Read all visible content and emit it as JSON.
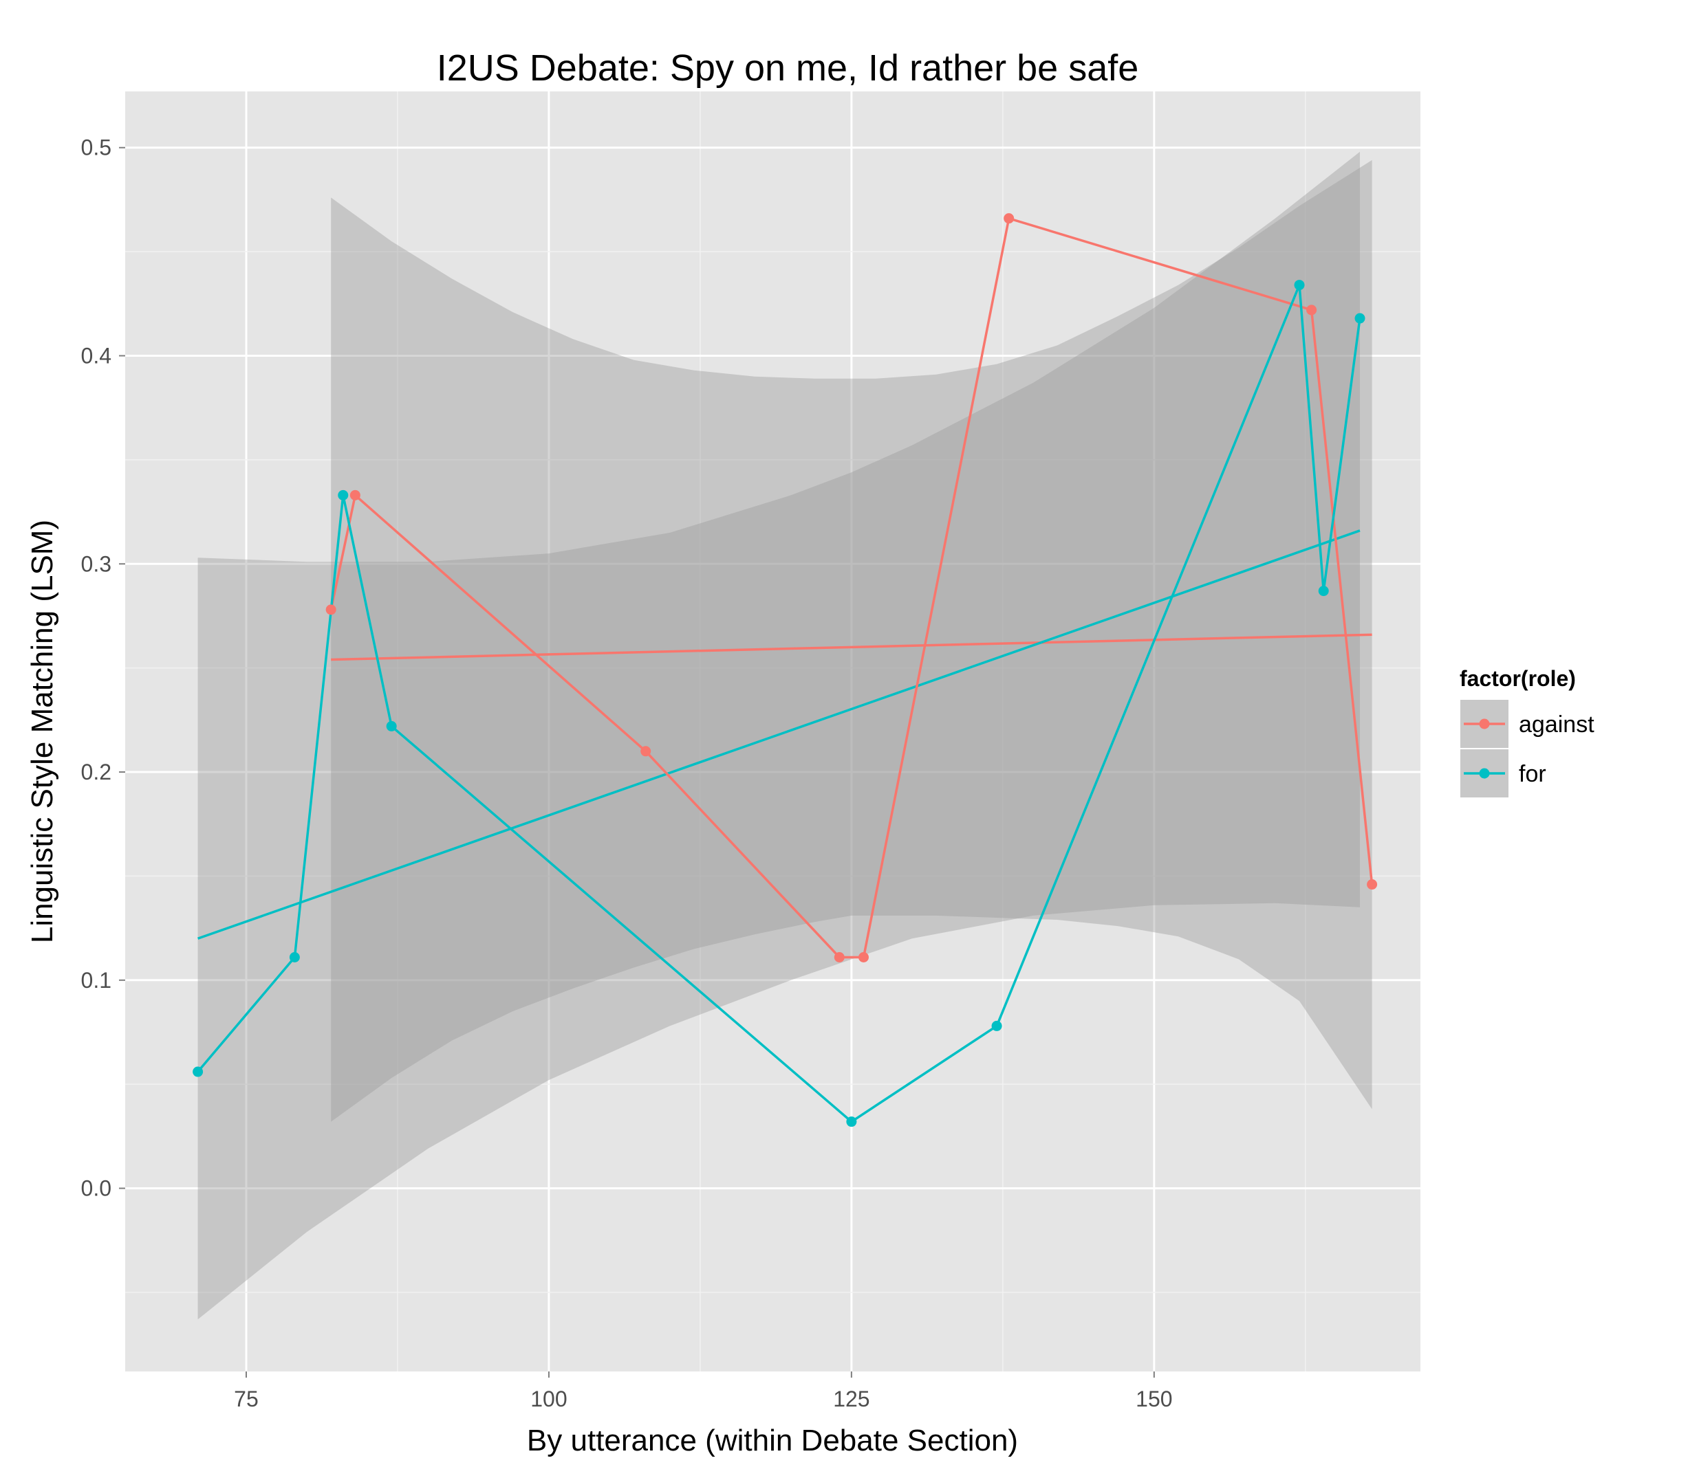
{
  "chart_data": {
    "type": "line",
    "title": "I2US Debate: Spy on me, Id rather be safe",
    "xlabel": "By utterance (within Debate Section)",
    "ylabel": "Linguistic Style Matching (LSM)",
    "xlim": [
      65,
      172
    ],
    "ylim": [
      -0.088,
      0.527
    ],
    "x_ticks": [
      75,
      100,
      125,
      150
    ],
    "x_tick_labels": [
      "75",
      "100",
      "125",
      "150"
    ],
    "y_ticks": [
      0.0,
      0.1,
      0.2,
      0.3,
      0.4,
      0.5
    ],
    "y_tick_labels": [
      "0.0",
      "0.1",
      "0.2",
      "0.3",
      "0.4",
      "0.5"
    ],
    "grid": true,
    "legend": {
      "title": "factor(role)",
      "position": "right",
      "entries": [
        "against",
        "for"
      ]
    },
    "series": [
      {
        "name": "against",
        "color": "#F8766D",
        "x": [
          82,
          84,
          108,
          124,
          126,
          138,
          163,
          168
        ],
        "y": [
          0.278,
          0.333,
          0.21,
          0.111,
          0.111,
          0.466,
          0.422,
          0.146
        ],
        "smooth": {
          "x": [
            82,
            168
          ],
          "y": [
            0.254,
            0.266
          ]
        },
        "ribbon": {
          "x": [
            82,
            87,
            92,
            97,
            102,
            107,
            112,
            117,
            122,
            125,
            127,
            132,
            137,
            142,
            147,
            152,
            157,
            162,
            168
          ],
          "lower": [
            0.032,
            0.053,
            0.071,
            0.085,
            0.096,
            0.106,
            0.115,
            0.122,
            0.128,
            0.131,
            0.131,
            0.131,
            0.13,
            0.129,
            0.126,
            0.121,
            0.11,
            0.09,
            0.038
          ],
          "upper": [
            0.476,
            0.455,
            0.437,
            0.421,
            0.408,
            0.398,
            0.393,
            0.39,
            0.389,
            0.389,
            0.389,
            0.391,
            0.396,
            0.405,
            0.419,
            0.434,
            0.452,
            0.472,
            0.494
          ]
        }
      },
      {
        "name": "for",
        "color": "#00BFC4",
        "x": [
          71,
          79,
          83,
          87,
          125,
          137,
          162,
          164,
          167
        ],
        "y": [
          0.056,
          0.111,
          0.333,
          0.222,
          0.032,
          0.078,
          0.434,
          0.287,
          0.418
        ],
        "smooth": {
          "x": [
            71,
            167
          ],
          "y": [
            0.12,
            0.316
          ]
        },
        "ribbon": {
          "x": [
            71,
            80,
            90,
            100,
            110,
            120,
            125,
            130,
            140,
            150,
            160,
            167
          ],
          "lower": [
            -0.063,
            -0.021,
            0.019,
            0.052,
            0.078,
            0.1,
            0.11,
            0.12,
            0.131,
            0.136,
            0.137,
            0.135
          ],
          "upper": [
            0.303,
            0.301,
            0.301,
            0.305,
            0.315,
            0.333,
            0.344,
            0.357,
            0.387,
            0.423,
            0.466,
            0.498
          ]
        }
      }
    ]
  }
}
